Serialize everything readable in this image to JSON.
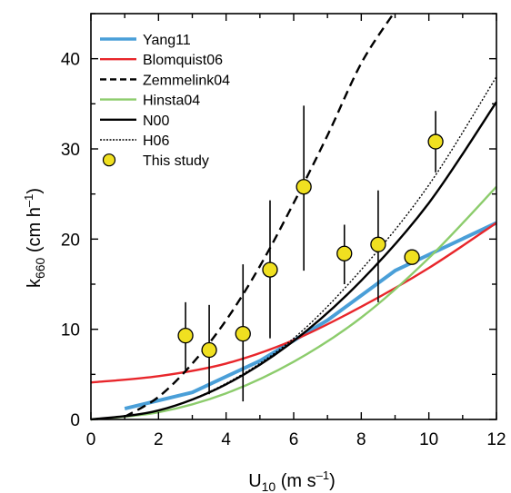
{
  "chart_data": {
    "type": "line",
    "xlabel": {
      "main": "U",
      "sub": "10",
      "rest": " (m s",
      "sup": "–1",
      "close": ")"
    },
    "ylabel": {
      "main": "k",
      "sub": "660",
      "rest": " (cm h",
      "sup": "–1",
      "close": ")"
    },
    "xlim": [
      0,
      12
    ],
    "ylim": [
      0,
      45
    ],
    "x_ticks": [
      "0",
      "2",
      "4",
      "6",
      "8",
      "10",
      "12"
    ],
    "y_ticks": [
      "0",
      "10",
      "20",
      "30",
      "40"
    ],
    "legend_position": "top-left",
    "series": [
      {
        "name": "Yang11",
        "color": "#4a9fd8",
        "dash": "solid",
        "x": [
          1,
          3,
          5,
          7,
          9,
          12
        ],
        "y": [
          1.2,
          3.0,
          6.5,
          11.0,
          16.5,
          21.8
        ]
      },
      {
        "name": "Blomquist06",
        "color": "#e8262b",
        "dash": "solid",
        "x": [
          0,
          2,
          4,
          6,
          8,
          10,
          12
        ],
        "y": [
          4.1,
          4.8,
          6.2,
          8.8,
          12.5,
          16.8,
          21.8
        ]
      },
      {
        "name": "Zemmelink04",
        "color": "#000000",
        "dash": "dashed",
        "x": [
          1,
          2,
          3,
          4,
          5,
          6,
          7,
          8,
          8.95
        ],
        "y": [
          0.3,
          2.5,
          6.2,
          11.0,
          17.0,
          24.0,
          31.5,
          39.5,
          45
        ]
      },
      {
        "name": "Hinsta04",
        "color": "#8ccc6c",
        "dash": "solid",
        "x": [
          0,
          2,
          4,
          6,
          8,
          10,
          12
        ],
        "y": [
          0,
          0.8,
          2.9,
          6.4,
          11.3,
          17.9,
          25.8
        ]
      },
      {
        "name": "N00",
        "color": "#000000",
        "dash": "solid",
        "x": [
          0,
          2,
          4,
          6,
          8,
          10,
          12
        ],
        "y": [
          0,
          1.0,
          3.9,
          8.7,
          15.4,
          24.0,
          35.2
        ]
      },
      {
        "name": "H06",
        "color": "#000000",
        "dash": "dotted",
        "x": [
          0,
          2,
          4,
          6,
          8,
          10,
          12
        ],
        "y": [
          0,
          1.0,
          4.0,
          9.0,
          16.6,
          26.0,
          38.0
        ]
      }
    ],
    "this_study": {
      "name": "This study",
      "color": "#f0e020",
      "points": [
        {
          "x": 2.8,
          "y": 9.3,
          "ylo": 5.5,
          "yhi": 13.0
        },
        {
          "x": 3.5,
          "y": 7.7,
          "ylo": 2.8,
          "yhi": 12.7
        },
        {
          "x": 4.5,
          "y": 9.5,
          "ylo": 2.0,
          "yhi": 17.2
        },
        {
          "x": 5.3,
          "y": 16.6,
          "ylo": 9.0,
          "yhi": 24.3
        },
        {
          "x": 6.3,
          "y": 25.8,
          "ylo": 16.5,
          "yhi": 34.8
        },
        {
          "x": 7.5,
          "y": 18.4,
          "ylo": 15.0,
          "yhi": 21.6
        },
        {
          "x": 8.5,
          "y": 19.4,
          "ylo": 13.0,
          "yhi": 25.4
        },
        {
          "x": 9.5,
          "y": 18.0,
          "ylo": 18.0,
          "yhi": 18.0
        },
        {
          "x": 10.2,
          "y": 30.8,
          "ylo": 27.4,
          "yhi": 34.2
        }
      ]
    }
  }
}
